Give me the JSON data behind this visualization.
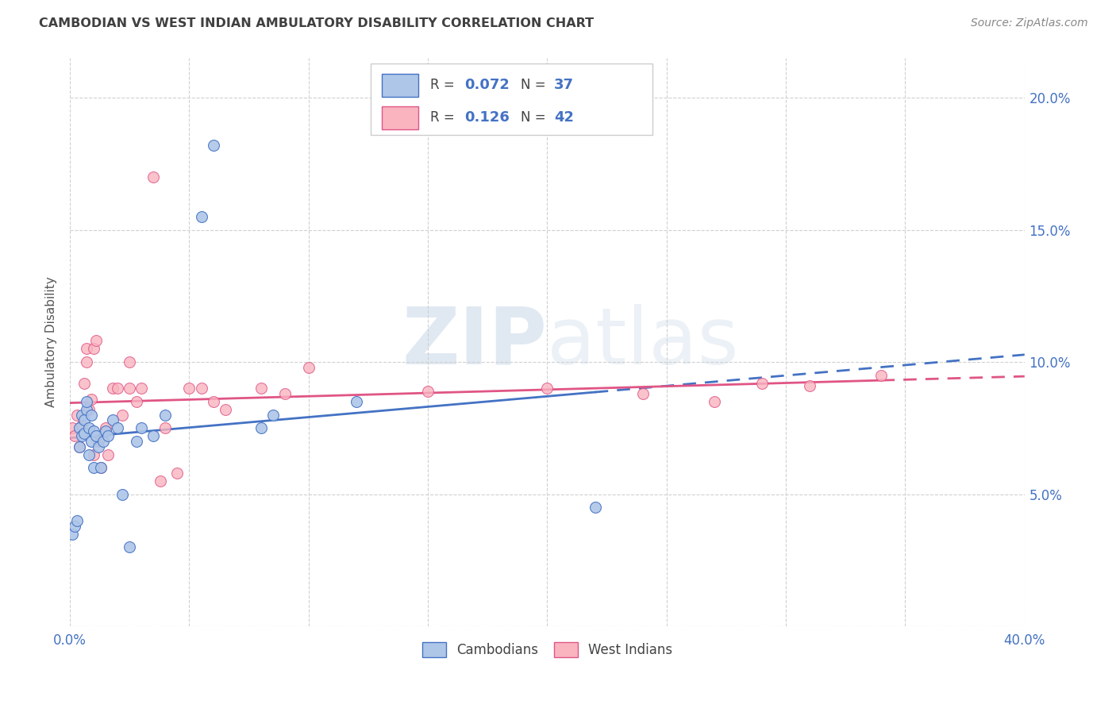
{
  "title": "CAMBODIAN VS WEST INDIAN AMBULATORY DISABILITY CORRELATION CHART",
  "source": "Source: ZipAtlas.com",
  "ylabel": "Ambulatory Disability",
  "xlim": [
    0.0,
    0.4
  ],
  "ylim": [
    0.0,
    0.215
  ],
  "ytick_vals": [
    0.0,
    0.05,
    0.1,
    0.15,
    0.2
  ],
  "yticklabels_right": [
    "",
    "5.0%",
    "10.0%",
    "15.0%",
    "20.0%"
  ],
  "xtick_vals": [
    0.0,
    0.05,
    0.1,
    0.15,
    0.2,
    0.25,
    0.3,
    0.35,
    0.4
  ],
  "xticklabels": [
    "0.0%",
    "",
    "",
    "",
    "",
    "",
    "",
    "",
    "40.0%"
  ],
  "cambodian_color": "#aec6e8",
  "west_indian_color": "#f9b4c0",
  "trend_cambodian_color": "#4472c4",
  "trend_west_indian_color": "#e05585",
  "R_cambodian": 0.072,
  "N_cambodian": 37,
  "R_west_indian": 0.126,
  "N_west_indian": 42,
  "legend_label_cambodian": "Cambodians",
  "legend_label_west_indian": "West Indians",
  "watermark_zip": "ZIP",
  "watermark_atlas": "atlas",
  "background_color": "#ffffff",
  "grid_color": "#d0d0d0",
  "axis_color": "#4472c4",
  "title_color": "#404040",
  "source_color": "#888888",
  "ylabel_color": "#555555",
  "cambodian_x": [
    0.001,
    0.002,
    0.003,
    0.004,
    0.004,
    0.005,
    0.005,
    0.006,
    0.006,
    0.007,
    0.007,
    0.008,
    0.008,
    0.009,
    0.009,
    0.01,
    0.01,
    0.011,
    0.012,
    0.013,
    0.014,
    0.015,
    0.016,
    0.018,
    0.02,
    0.022,
    0.025,
    0.028,
    0.03,
    0.035,
    0.04,
    0.055,
    0.06,
    0.08,
    0.085,
    0.12,
    0.22
  ],
  "cambodian_y": [
    0.035,
    0.038,
    0.04,
    0.068,
    0.075,
    0.072,
    0.08,
    0.078,
    0.073,
    0.082,
    0.085,
    0.075,
    0.065,
    0.07,
    0.08,
    0.06,
    0.074,
    0.072,
    0.068,
    0.06,
    0.07,
    0.074,
    0.072,
    0.078,
    0.075,
    0.05,
    0.03,
    0.07,
    0.075,
    0.072,
    0.08,
    0.155,
    0.182,
    0.075,
    0.08,
    0.085,
    0.045
  ],
  "west_indian_x": [
    0.001,
    0.002,
    0.003,
    0.004,
    0.005,
    0.006,
    0.007,
    0.007,
    0.008,
    0.009,
    0.01,
    0.01,
    0.011,
    0.012,
    0.013,
    0.015,
    0.016,
    0.018,
    0.02,
    0.022,
    0.025,
    0.025,
    0.028,
    0.03,
    0.035,
    0.038,
    0.04,
    0.045,
    0.05,
    0.055,
    0.06,
    0.065,
    0.08,
    0.09,
    0.1,
    0.15,
    0.2,
    0.24,
    0.27,
    0.29,
    0.31,
    0.34
  ],
  "west_indian_y": [
    0.075,
    0.072,
    0.08,
    0.068,
    0.076,
    0.092,
    0.1,
    0.105,
    0.082,
    0.086,
    0.065,
    0.105,
    0.108,
    0.07,
    0.06,
    0.075,
    0.065,
    0.09,
    0.09,
    0.08,
    0.1,
    0.09,
    0.085,
    0.09,
    0.17,
    0.055,
    0.075,
    0.058,
    0.09,
    0.09,
    0.085,
    0.082,
    0.09,
    0.088,
    0.098,
    0.089,
    0.09,
    0.088,
    0.085,
    0.092,
    0.091,
    0.095
  ],
  "trend_camb_x0": 0.0,
  "trend_camb_x_solid_end": 0.22,
  "trend_camb_x_dash_end": 0.4,
  "trend_wi_x0": 0.0,
  "trend_wi_x_solid_end": 0.34,
  "trend_wi_x_dash_end": 0.4
}
